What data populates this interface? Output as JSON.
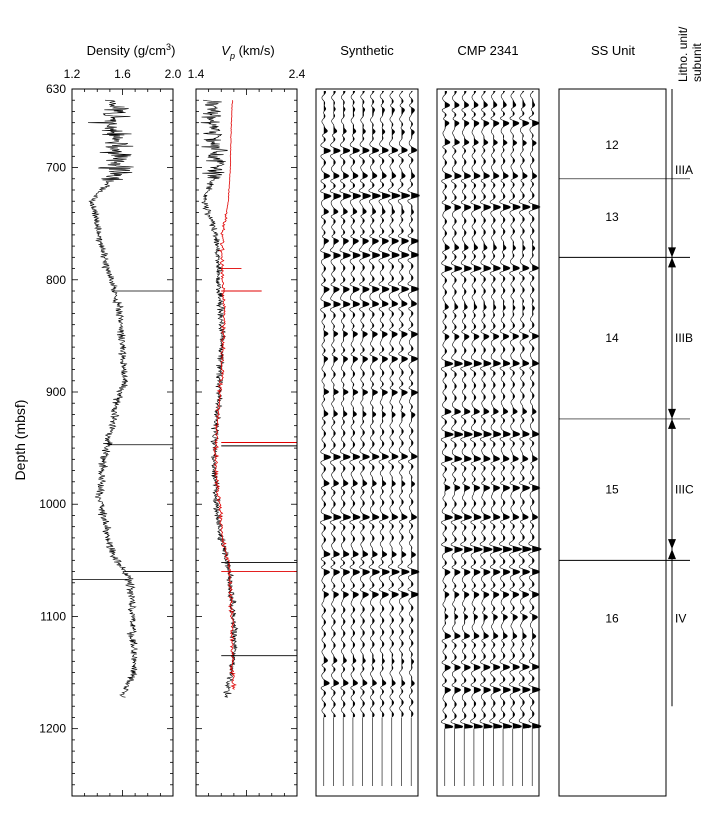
{
  "chart_data": {
    "type": "line",
    "y_axis": {
      "label": "Depth (mbsf)",
      "range": [
        630,
        1260
      ],
      "ticks": [
        630,
        700,
        800,
        900,
        1000,
        1100,
        1200
      ],
      "minor_step": 10
    },
    "panels": {
      "density": {
        "title_main": "Density (g/cm",
        "title_sup": "3",
        "title_close": ")",
        "range": [
          1.2,
          2.0
        ],
        "tick_labels": [
          "1.2",
          "1.6",
          "2.0"
        ],
        "ticks": [
          1.2,
          1.6,
          2.0
        ],
        "series": [
          {
            "color": "#000000",
            "profile": [
              [
                640,
                1.55
              ],
              [
                660,
                1.5
              ],
              [
                680,
                1.55
              ],
              [
                700,
                1.57
              ],
              [
                712,
                1.5
              ],
              [
                730,
                1.35
              ],
              [
                750,
                1.4
              ],
              [
                780,
                1.45
              ],
              [
                800,
                1.52
              ],
              [
                830,
                1.58
              ],
              [
                860,
                1.6
              ],
              [
                890,
                1.62
              ],
              [
                910,
                1.55
              ],
              [
                930,
                1.52
              ],
              [
                960,
                1.45
              ],
              [
                990,
                1.42
              ],
              [
                1010,
                1.45
              ],
              [
                1030,
                1.48
              ],
              [
                1050,
                1.55
              ],
              [
                1065,
                1.65
              ],
              [
                1090,
                1.68
              ],
              [
                1120,
                1.68
              ],
              [
                1150,
                1.7
              ],
              [
                1170,
                1.6
              ]
            ]
          }
        ]
      },
      "vp": {
        "title_main": "V",
        "title_sub": "p",
        "title_rest": " (km/s)",
        "range": [
          1.4,
          2.4
        ],
        "tick_labels": [
          "1.4",
          "2.4"
        ],
        "ticks": [
          1.4,
          2.4
        ],
        "series": [
          {
            "color": "#000000",
            "profile": [
              [
                640,
                1.58
              ],
              [
                660,
                1.55
              ],
              [
                680,
                1.58
              ],
              [
                700,
                1.62
              ],
              [
                712,
                1.55
              ],
              [
                730,
                1.48
              ],
              [
                760,
                1.6
              ],
              [
                790,
                1.62
              ],
              [
                820,
                1.64
              ],
              [
                850,
                1.66
              ],
              [
                880,
                1.64
              ],
              [
                910,
                1.62
              ],
              [
                940,
                1.58
              ],
              [
                970,
                1.58
              ],
              [
                1000,
                1.6
              ],
              [
                1030,
                1.65
              ],
              [
                1055,
                1.72
              ],
              [
                1080,
                1.75
              ],
              [
                1110,
                1.78
              ],
              [
                1140,
                1.77
              ],
              [
                1170,
                1.7
              ]
            ]
          },
          {
            "color": "#e00000",
            "profile": [
              [
                640,
                1.76
              ],
              [
                660,
                1.75
              ],
              [
                700,
                1.74
              ],
              [
                730,
                1.72
              ],
              [
                760,
                1.66
              ],
              [
                790,
                1.66
              ],
              [
                820,
                1.68
              ],
              [
                850,
                1.67
              ],
              [
                880,
                1.66
              ],
              [
                910,
                1.63
              ],
              [
                940,
                1.6
              ],
              [
                970,
                1.6
              ],
              [
                1000,
                1.63
              ],
              [
                1030,
                1.66
              ],
              [
                1055,
                1.73
              ],
              [
                1080,
                1.74
              ],
              [
                1110,
                1.76
              ],
              [
                1140,
                1.76
              ],
              [
                1165,
                1.77
              ]
            ]
          }
        ]
      },
      "synthetic": {
        "title": "Synthetic",
        "n_traces": 10,
        "trace_end_depth": 1190,
        "strong_depths": [
          648,
          668,
          685,
          708,
          725,
          740,
          765,
          778,
          808,
          822,
          848,
          870,
          900,
          920,
          958,
          982,
          1012,
          1045,
          1060,
          1080,
          1140,
          1160
        ]
      },
      "cmp": {
        "title": "CMP 2341",
        "n_traces": 10,
        "trace_end_depth": 1200,
        "strong_depths": [
          645,
          660,
          678,
          708,
          735,
          772,
          790,
          825,
          850,
          875,
          918,
          938,
          960,
          985,
          1012,
          1040,
          1060,
          1080,
          1100,
          1118,
          1145,
          1165,
          1198
        ]
      },
      "ss_units": {
        "title": "SS Unit",
        "boundaries": [
          710,
          780,
          924,
          1050
        ],
        "units": [
          {
            "label": "12",
            "depth": 680
          },
          {
            "label": "13",
            "depth": 744
          },
          {
            "label": "14",
            "depth": 852
          },
          {
            "label": "15",
            "depth": 987
          },
          {
            "label": "16",
            "depth": 1102
          }
        ]
      },
      "litho": {
        "title_line1": "Litho. unit/",
        "title_line2": "subunit",
        "column_top": 630,
        "column_bottom": 1180,
        "boundary_markers": [
          780,
          924,
          1040
        ],
        "units": [
          {
            "label": "IIIA",
            "depth": 702
          },
          {
            "label": "IIIB",
            "depth": 852
          },
          {
            "label": "IIIC",
            "depth": 987
          },
          {
            "label": "IV",
            "depth": 1102
          }
        ]
      }
    }
  }
}
